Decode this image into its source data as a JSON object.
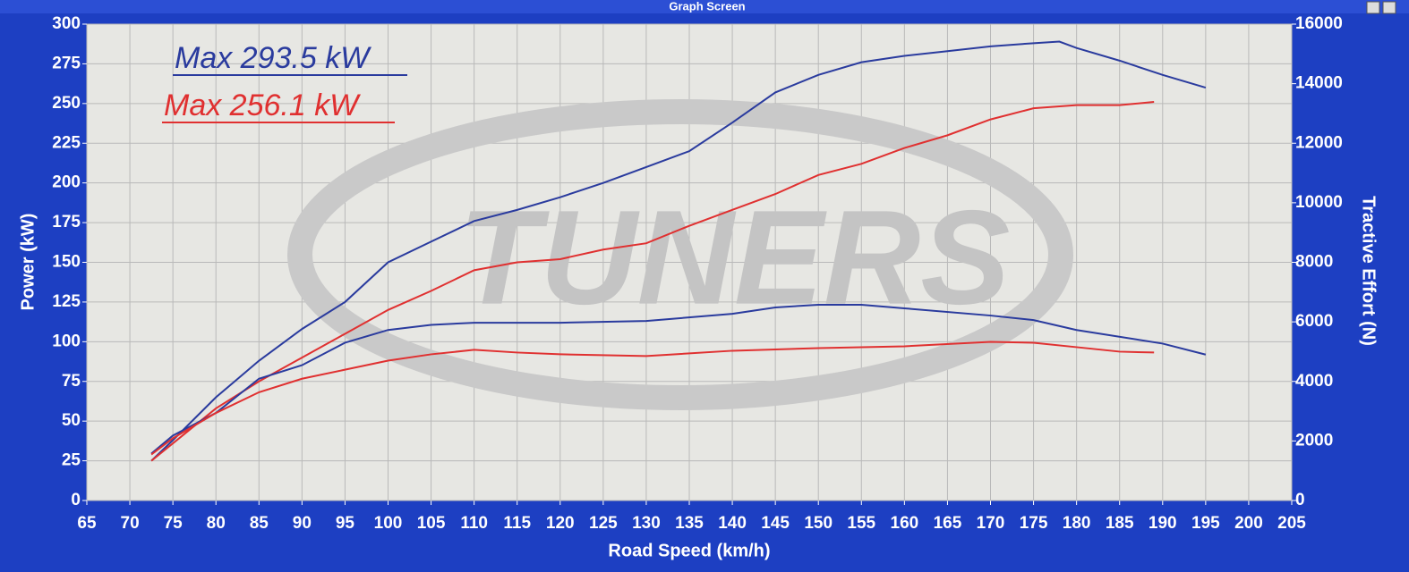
{
  "window_title": "Graph Screen",
  "chart_data": {
    "type": "line",
    "watermark": "TUNERS",
    "annotations": [
      "Max 293.5 kW",
      "Max 256.1 kW"
    ],
    "x_label": "Road Speed (km/h)",
    "y_label": "Power (kW)",
    "y2_label": "Tractive Effort (N)",
    "xlim": [
      65,
      205
    ],
    "xticks": [
      65,
      70,
      75,
      80,
      85,
      90,
      95,
      100,
      105,
      110,
      115,
      120,
      125,
      130,
      135,
      140,
      145,
      150,
      155,
      160,
      165,
      170,
      175,
      180,
      185,
      190,
      195,
      200,
      205
    ],
    "ylim": [
      0,
      300
    ],
    "yticks": [
      0,
      25,
      50,
      75,
      100,
      125,
      150,
      175,
      200,
      225,
      250,
      275,
      300
    ],
    "y2lim": [
      0,
      16000
    ],
    "y2ticks": [
      0,
      2000,
      4000,
      6000,
      8000,
      10000,
      12000,
      14000,
      16000
    ],
    "grid": true,
    "series": [
      {
        "color": "#2a3b9e",
        "x": [
          72.5,
          75,
          80,
          85,
          90,
          95,
          100,
          105,
          110,
          115,
          120,
          125,
          130,
          135,
          140,
          145,
          150,
          155,
          160,
          165,
          170,
          175,
          178,
          180,
          185,
          190,
          195
        ],
        "values": [
          25,
          38,
          65,
          88,
          108,
          125,
          150,
          163,
          176,
          183,
          191,
          200,
          210,
          220,
          238,
          257,
          268,
          276,
          280,
          283,
          286,
          288,
          289,
          285,
          277,
          268,
          260
        ]
      },
      {
        "color": "#e03030",
        "x": [
          72.5,
          75,
          80,
          85,
          90,
          95,
          100,
          105,
          110,
          115,
          120,
          125,
          130,
          135,
          140,
          145,
          150,
          155,
          160,
          165,
          170,
          175,
          180,
          185,
          189
        ],
        "values": [
          25,
          36,
          58,
          75,
          90,
          105,
          120,
          132,
          145,
          150,
          152,
          158,
          162,
          173,
          183,
          193,
          205,
          212,
          222,
          230,
          240,
          247,
          249,
          249,
          251
        ]
      },
      {
        "color": "#2a3b9e",
        "axis": "y2",
        "x": [
          72.5,
          75,
          80,
          85,
          90,
          95,
          100,
          105,
          110,
          120,
          130,
          140,
          145,
          150,
          155,
          160,
          170,
          175,
          180,
          190,
          195
        ],
        "values": [
          1575,
          2180,
          2940,
          4090,
          4545,
          5300,
          5727,
          5900,
          5970,
          5970,
          6030,
          6270,
          6485,
          6575,
          6575,
          6455,
          6212,
          6060,
          5727,
          5270,
          4900
        ]
      },
      {
        "color": "#e03030",
        "axis": "y2",
        "x": [
          72.5,
          75,
          80,
          85,
          90,
          95,
          100,
          105,
          110,
          115,
          120,
          130,
          140,
          150,
          160,
          170,
          175,
          180,
          185,
          189
        ],
        "values": [
          1545,
          2090,
          2940,
          3636,
          4090,
          4394,
          4697,
          4910,
          5060,
          4970,
          4910,
          4850,
          5030,
          5120,
          5180,
          5330,
          5300,
          5150,
          5000,
          4970
        ]
      }
    ]
  }
}
